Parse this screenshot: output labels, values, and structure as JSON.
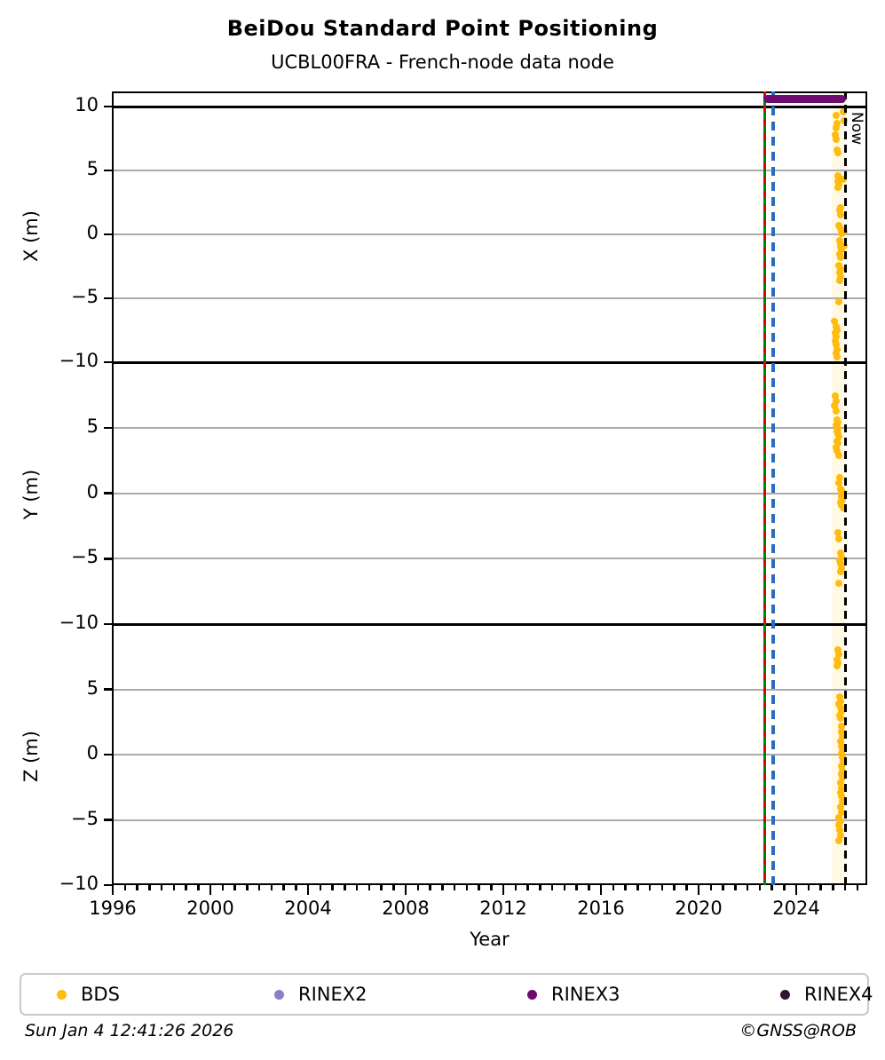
{
  "title": "BeiDou Standard Point Positioning",
  "subtitle": "UCBL00FRA - French-node data node",
  "now_label": "Now",
  "footer": {
    "timestamp": "Sun Jan  4 12:41:26 2026",
    "copyright": "©GNSS@ROB"
  },
  "legend": {
    "items": [
      {
        "label": "BDS",
        "color": "#FFBB0E"
      },
      {
        "label": "RINEX2",
        "color": "#8B7FC7"
      },
      {
        "label": "RINEX3",
        "color": "#6E0B6E"
      },
      {
        "label": "RINEX4",
        "color": "#321432"
      }
    ]
  },
  "chart_data": {
    "type": "scatter",
    "title": "BeiDou Standard Point Positioning",
    "subtitle": "UCBL00FRA - French-node data node",
    "xlabel": "Year",
    "xlim": [
      1996,
      2026.9
    ],
    "x_major_ticks": [
      1996,
      2000,
      2004,
      2008,
      2012,
      2016,
      2020,
      2024
    ],
    "x_minor_step_years": 0.5,
    "grid": "horizontal-gray-at-5-0-minus5",
    "legend_position": "bottom",
    "point_color": "#FFBB0E",
    "series_name": "BDS",
    "markers": {
      "green_solid_line_year": 2022.7,
      "red_dashed_line_year": 2022.7,
      "blue_dashed_line_year": 2023.05,
      "now_line_year": 2026.01,
      "highlight_band_years": [
        2025.45,
        2026.0
      ],
      "rinex3_bar_years": [
        2022.65,
        2026.05
      ],
      "green_color": "#007F00",
      "red_color": "#E00000",
      "blue_color": "#2A6EBB",
      "now_color": "#000000",
      "band_color": "#FFF9E6",
      "rinex3_color": "#6E0B6E"
    },
    "panels": [
      {
        "ylabel": "X (m)",
        "ylim": [
          -10,
          10
        ],
        "yticks_shown": [
          10,
          5,
          0,
          -5,
          -10
        ],
        "points": [
          [
            2025.62,
            9.3
          ],
          [
            2025.66,
            8.7
          ],
          [
            2025.64,
            8.3
          ],
          [
            2025.6,
            7.8
          ],
          [
            2025.63,
            7.4
          ],
          [
            2025.67,
            6.6
          ],
          [
            2025.7,
            6.4
          ],
          [
            2025.72,
            4.6
          ],
          [
            2025.76,
            4.4
          ],
          [
            2025.7,
            4.2
          ],
          [
            2025.74,
            3.9
          ],
          [
            2025.72,
            3.7
          ],
          [
            2025.8,
            2.1
          ],
          [
            2025.78,
            1.9
          ],
          [
            2025.82,
            1.5
          ],
          [
            2025.76,
            0.7
          ],
          [
            2025.8,
            0.4
          ],
          [
            2025.84,
            0.1
          ],
          [
            2025.78,
            -0.5
          ],
          [
            2025.82,
            -0.8
          ],
          [
            2025.8,
            -1.0
          ],
          [
            2025.84,
            -1.2
          ],
          [
            2025.79,
            -1.5
          ],
          [
            2025.83,
            -1.8
          ],
          [
            2025.76,
            -2.4
          ],
          [
            2025.8,
            -2.7
          ],
          [
            2025.78,
            -3.0
          ],
          [
            2025.82,
            -3.3
          ],
          [
            2025.77,
            -3.6
          ],
          [
            2025.74,
            -5.3
          ],
          [
            2025.58,
            -6.8
          ],
          [
            2025.62,
            -7.2
          ],
          [
            2025.66,
            -7.5
          ],
          [
            2025.61,
            -7.7
          ],
          [
            2025.65,
            -8.0
          ],
          [
            2025.6,
            -8.3
          ],
          [
            2025.64,
            -8.6
          ],
          [
            2025.68,
            -9.0
          ],
          [
            2025.62,
            -9.3
          ],
          [
            2025.66,
            -9.6
          ],
          [
            2025.93,
            9.6
          ],
          [
            2025.95,
            8.9
          ],
          [
            2025.94,
            4.3
          ],
          [
            2025.96,
            0.2
          ],
          [
            2025.95,
            -0.9
          ]
        ]
      },
      {
        "ylabel": "Y (m)",
        "ylim": [
          -10,
          10
        ],
        "yticks_shown": [
          5,
          0,
          -5,
          -10
        ],
        "points": [
          [
            2025.6,
            7.4
          ],
          [
            2025.63,
            7.0
          ],
          [
            2025.58,
            6.7
          ],
          [
            2025.62,
            6.3
          ],
          [
            2025.66,
            5.6
          ],
          [
            2025.7,
            5.4
          ],
          [
            2025.64,
            5.2
          ],
          [
            2025.68,
            5.0
          ],
          [
            2025.72,
            4.9
          ],
          [
            2025.66,
            4.7
          ],
          [
            2025.7,
            4.5
          ],
          [
            2025.74,
            4.3
          ],
          [
            2025.68,
            4.0
          ],
          [
            2025.72,
            3.8
          ],
          [
            2025.65,
            3.5
          ],
          [
            2025.69,
            3.2
          ],
          [
            2025.73,
            2.9
          ],
          [
            2025.77,
            1.2
          ],
          [
            2025.75,
            0.8
          ],
          [
            2025.82,
            0.3
          ],
          [
            2025.86,
            0.2
          ],
          [
            2025.9,
            0.1
          ],
          [
            2025.84,
            0.0
          ],
          [
            2025.88,
            -0.1
          ],
          [
            2025.93,
            -0.2
          ],
          [
            2025.86,
            -0.3
          ],
          [
            2025.9,
            -0.5
          ],
          [
            2025.83,
            -0.7
          ],
          [
            2025.87,
            -0.9
          ],
          [
            2025.91,
            -1.1
          ],
          [
            2025.72,
            -3.0
          ],
          [
            2025.76,
            -3.5
          ],
          [
            2025.8,
            -4.6
          ],
          [
            2025.84,
            -4.9
          ],
          [
            2025.78,
            -5.1
          ],
          [
            2025.82,
            -5.4
          ],
          [
            2025.86,
            -5.7
          ],
          [
            2025.8,
            -6.0
          ],
          [
            2025.74,
            -6.9
          ]
        ]
      },
      {
        "ylabel": "Z (m)",
        "ylim": [
          -10,
          10
        ],
        "yticks_shown": [
          5,
          0,
          -5,
          -10
        ],
        "points": [
          [
            2025.7,
            8.0
          ],
          [
            2025.74,
            7.7
          ],
          [
            2025.68,
            7.3
          ],
          [
            2025.72,
            7.0
          ],
          [
            2025.66,
            6.8
          ],
          [
            2025.78,
            4.4
          ],
          [
            2025.82,
            4.1
          ],
          [
            2025.76,
            3.9
          ],
          [
            2025.8,
            3.6
          ],
          [
            2025.84,
            3.3
          ],
          [
            2025.78,
            3.0
          ],
          [
            2025.82,
            2.8
          ],
          [
            2025.86,
            2.2
          ],
          [
            2025.84,
            1.8
          ],
          [
            2025.88,
            1.4
          ],
          [
            2025.82,
            1.0
          ],
          [
            2025.86,
            0.7
          ],
          [
            2025.9,
            0.4
          ],
          [
            2025.84,
            0.1
          ],
          [
            2025.88,
            -0.2
          ],
          [
            2025.92,
            -0.5
          ],
          [
            2025.86,
            -0.9
          ],
          [
            2025.9,
            -1.2
          ],
          [
            2025.84,
            -1.5
          ],
          [
            2025.88,
            -1.8
          ],
          [
            2025.82,
            -2.2
          ],
          [
            2025.86,
            -2.6
          ],
          [
            2025.8,
            -2.9
          ],
          [
            2025.84,
            -3.2
          ],
          [
            2025.88,
            -3.6
          ],
          [
            2025.82,
            -4.0
          ],
          [
            2025.86,
            -4.4
          ],
          [
            2025.76,
            -4.8
          ],
          [
            2025.8,
            -5.1
          ],
          [
            2025.74,
            -5.4
          ],
          [
            2025.78,
            -5.8
          ],
          [
            2025.82,
            -6.2
          ],
          [
            2025.76,
            -6.6
          ]
        ]
      }
    ]
  }
}
